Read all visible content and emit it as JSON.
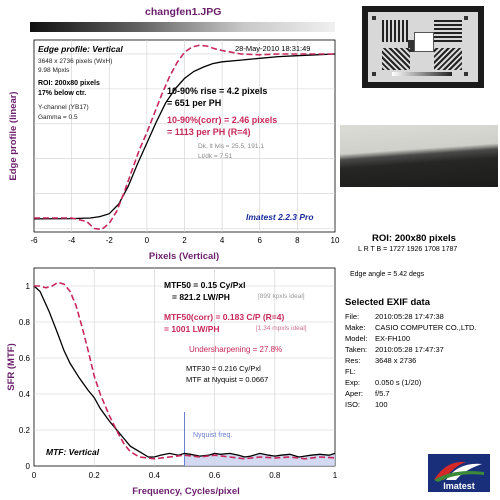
{
  "file_title": "changfen1.JPG",
  "edge_title": "Edge profile: Vertical",
  "edge_date": "28-May-2010 18:31:49",
  "edge_info": [
    "3648 x 2736 pixels (WxH)",
    "9.98 Mpxls"
  ],
  "roi_info": [
    "ROI: 200x80 pixels",
    "17% below ctr."
  ],
  "channel_info": [
    "Y-channel (YB17)",
    "Gamma = 0.5"
  ],
  "rise_text": [
    "10-90% rise = 4.2 pixels",
    "= 651 per PH"
  ],
  "rise_corr_text": [
    "10-90%(corr) = 2.46 pixels",
    "= 1113 per PH  (R=4)"
  ],
  "dk_text": [
    "Dk, lt lvls = 25.5, 191.1",
    "Lt/dk = 7.51"
  ],
  "imatest_version": "Imatest 2.2.3 Pro",
  "mtf_lines": {
    "mtf50": "MTF50 = 0.15 Cy/Pxl",
    "mtf50_ph": "= 821.2 LW/PH",
    "mtf50_ideal": "[899 kpxls ideal]",
    "mtf50c": "MTF50(corr) = 0.183 C/P  (R=4)",
    "mtf50c_ph": "= 1001 LW/PH",
    "mtf50c_ideal": "[1.34 mpxls ideal]",
    "undersharp": "Undersharpening = 27.8%",
    "mtf30": "MTF30 = 0.216 Cy/Pxl",
    "nyq_mtf": "MTF at Nyquist = 0.0667"
  },
  "nyquist_label": "Nyquist freq.",
  "mtf_title": "MTF: Vertical",
  "roi_title": "ROI: 200x80 pixels",
  "roi_coords": "L R  T B = 1727 1926  1708 1787",
  "edge_angle": "Edge angle = 5.42 degs",
  "exif_title": "Selected EXIF data",
  "exif": [
    {
      "k": "File:",
      "v": "2010:05:28 17:47:38"
    },
    {
      "k": "Make:",
      "v": "CASIO COMPUTER CO.,LTD."
    },
    {
      "k": "Model:",
      "v": "EX-FH100"
    },
    {
      "k": "Taken:",
      "v": "2010:05:28 17:47:37"
    },
    {
      "k": "Res:",
      "v": "3648 x 2736"
    },
    {
      "k": "FL:",
      "v": ""
    },
    {
      "k": "Exp:",
      "v": "0.050 s  (1/20)"
    },
    {
      "k": "Aper:",
      "v": "f/5.7"
    },
    {
      "k": "ISO:",
      "v": "100"
    }
  ],
  "logo_text": "Imatest",
  "colors": {
    "title": "#6b1f6b",
    "measured": "#000000",
    "corrected": "#c8285a",
    "nyquist": "#6a7fd0"
  },
  "chart_data": [
    {
      "type": "line",
      "title": "Edge profile: Vertical",
      "xlabel": "Pixels (Vertical)",
      "ylabel": "Edge profile (linear)",
      "xlim": [
        -6,
        10
      ],
      "ylim": [
        -0.02,
        1.08
      ],
      "xticks": [
        -6,
        -4,
        -2,
        0,
        2,
        4,
        6,
        8,
        10
      ],
      "grid": true,
      "series": [
        {
          "style": "solid",
          "x": [
            -6,
            -4,
            -3,
            -2.5,
            -2,
            -1.5,
            -1,
            -0.5,
            0,
            0.5,
            1,
            1.5,
            2,
            2.5,
            3,
            3.5,
            4,
            5,
            6,
            7,
            8,
            9,
            10
          ],
          "y": [
            0.055,
            0.057,
            0.06,
            0.068,
            0.085,
            0.14,
            0.24,
            0.37,
            0.49,
            0.61,
            0.72,
            0.8,
            0.86,
            0.9,
            0.925,
            0.945,
            0.955,
            0.965,
            0.975,
            0.985,
            0.99,
            0.995,
            1.0
          ]
        },
        {
          "style": "dashed",
          "x": [
            -6,
            -4,
            -3.2,
            -2.8,
            -2.4,
            -2,
            -1.6,
            -1.2,
            -0.8,
            -0.4,
            0,
            0.4,
            0.8,
            1.2,
            1.6,
            2,
            2.4,
            2.8,
            3.2,
            3.6,
            4,
            5,
            6,
            7,
            8,
            9,
            10
          ],
          "y": [
            0.06,
            0.06,
            0.04,
            0.0,
            -0.005,
            0.03,
            0.1,
            0.21,
            0.33,
            0.45,
            0.55,
            0.66,
            0.77,
            0.87,
            0.95,
            1.01,
            1.04,
            1.05,
            1.045,
            1.03,
            1.02,
            1.0,
            0.995,
            1.0,
            1.0,
            1.0,
            1.0
          ]
        }
      ]
    },
    {
      "type": "line",
      "title": "MTF: Vertical",
      "xlabel": "Frequency, Cycles/pixel",
      "ylabel": "SFR (MTF)",
      "xlim": [
        0,
        1
      ],
      "ylim": [
        0,
        1.1
      ],
      "xticks": [
        0,
        0.2,
        0.4,
        0.6,
        0.8,
        1
      ],
      "yticks": [
        0,
        0.2,
        0.4,
        0.6,
        0.8,
        1
      ],
      "grid": true,
      "nyquist": 0.5,
      "series": [
        {
          "style": "solid",
          "x": [
            0,
            0.02,
            0.05,
            0.08,
            0.1,
            0.12,
            0.15,
            0.18,
            0.2,
            0.22,
            0.25,
            0.28,
            0.3,
            0.32,
            0.35,
            0.38,
            0.4,
            0.42,
            0.45,
            0.48,
            0.5,
            0.52,
            0.55,
            0.58,
            0.6,
            0.62,
            0.65,
            0.68,
            0.7,
            0.72,
            0.75,
            0.78,
            0.8,
            0.82,
            0.85,
            0.88,
            0.9,
            0.92,
            0.95,
            0.98,
            1.0
          ],
          "y": [
            1,
            0.97,
            0.86,
            0.73,
            0.64,
            0.57,
            0.49,
            0.42,
            0.38,
            0.32,
            0.25,
            0.19,
            0.15,
            0.11,
            0.08,
            0.05,
            0.05,
            0.06,
            0.07,
            0.06,
            0.07,
            0.065,
            0.055,
            0.06,
            0.07,
            0.065,
            0.07,
            0.06,
            0.05,
            0.055,
            0.07,
            0.06,
            0.055,
            0.06,
            0.065,
            0.05,
            0.055,
            0.06,
            0.065,
            0.06,
            0.07
          ]
        },
        {
          "style": "dashed",
          "x": [
            0,
            0.02,
            0.04,
            0.06,
            0.08,
            0.1,
            0.12,
            0.14,
            0.16,
            0.18,
            0.2,
            0.22,
            0.25,
            0.28,
            0.3,
            0.32,
            0.35,
            0.4,
            0.45,
            0.5,
            0.55,
            0.6,
            0.65,
            0.7,
            0.75,
            0.8,
            0.85,
            0.9,
            0.95,
            1.0
          ],
          "y": [
            1,
            1.0,
            0.99,
            1.0,
            1.02,
            1.01,
            0.97,
            0.89,
            0.77,
            0.64,
            0.5,
            0.4,
            0.28,
            0.18,
            0.12,
            0.08,
            0.05,
            0.04,
            0.05,
            0.06,
            0.05,
            0.06,
            0.05,
            0.04,
            0.05,
            0.045,
            0.05,
            0.04,
            0.05,
            0.045
          ]
        }
      ]
    }
  ]
}
